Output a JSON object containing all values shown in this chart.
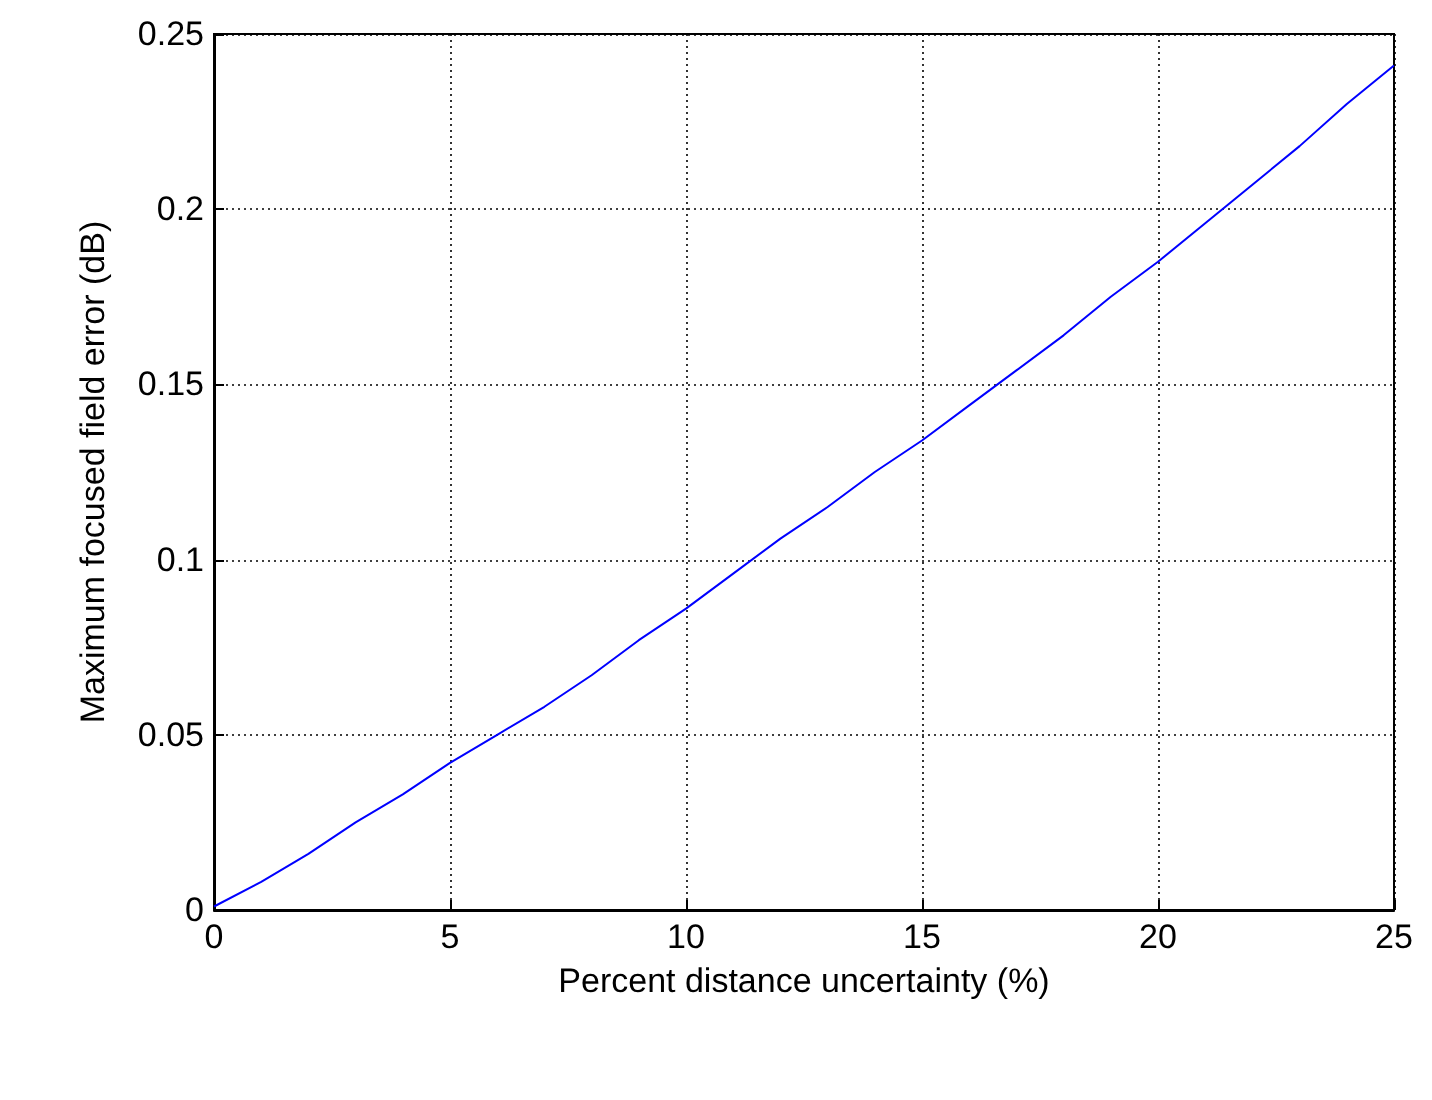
{
  "chart_data": {
    "type": "line",
    "xlabel": "Percent distance uncertainty (%)",
    "ylabel": "Maximum focused field error (dB)",
    "series": [
      {
        "color": "#0000ff",
        "x": [
          0,
          1,
          2,
          3,
          4,
          5,
          6,
          7,
          8,
          9,
          10,
          11,
          12,
          13,
          14,
          15,
          16,
          17,
          18,
          19,
          20,
          21,
          22,
          23,
          24,
          25
        ],
        "values": [
          0.001,
          0.008,
          0.016,
          0.025,
          0.033,
          0.042,
          0.05,
          0.058,
          0.067,
          0.077,
          0.086,
          0.096,
          0.106,
          0.115,
          0.125,
          0.134,
          0.144,
          0.154,
          0.164,
          0.175,
          0.185,
          0.196,
          0.207,
          0.218,
          0.23,
          0.241
        ]
      }
    ],
    "xlim": [
      0,
      25
    ],
    "xticks": [
      0,
      5,
      10,
      15,
      20,
      25
    ],
    "ylim": [
      0,
      0.25
    ],
    "yticks": [
      0,
      0.05,
      0.1,
      0.15,
      0.2,
      0.25
    ],
    "grid": true,
    "line_style": "solid",
    "marker": "none"
  }
}
